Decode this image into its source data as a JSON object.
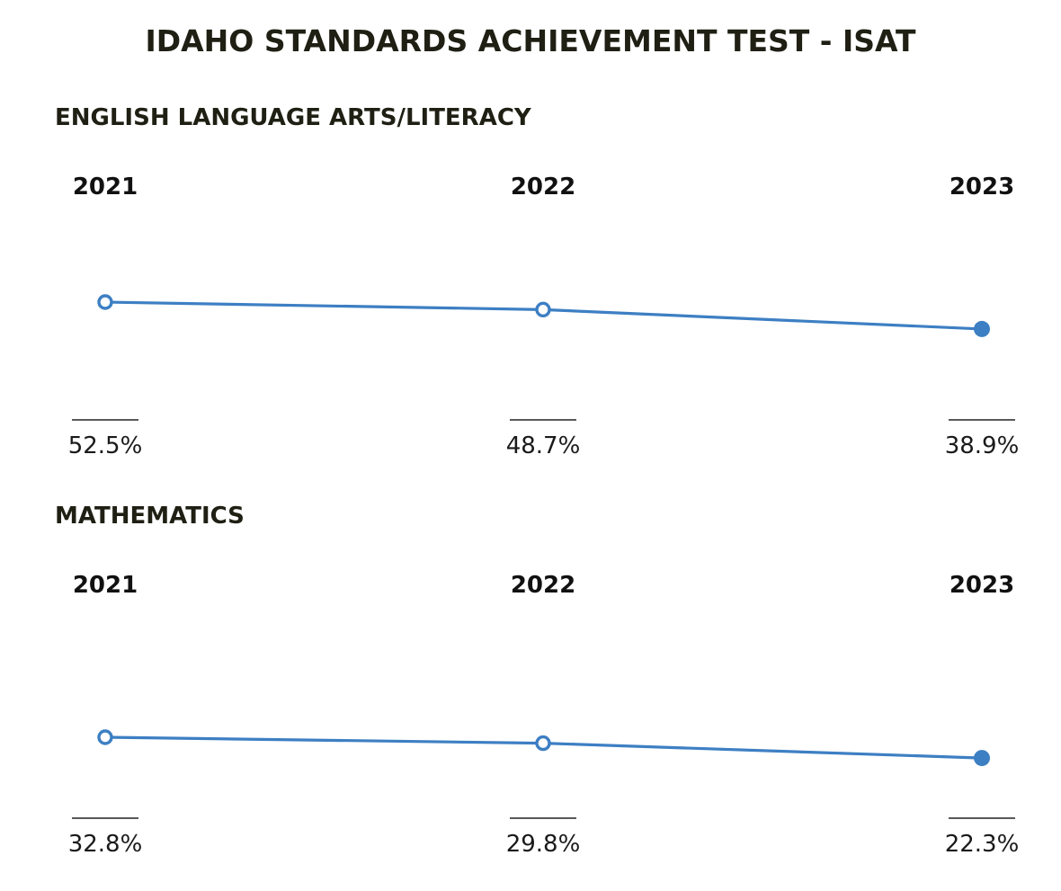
{
  "title": "IDAHO STANDARDS ACHIEVEMENT TEST - ISAT",
  "colors": {
    "line": "#3d7fc3",
    "point_fill_hollow": "#ffffff",
    "text": "#1f1f14",
    "rule": "#222222"
  },
  "chart_data": [
    {
      "type": "line",
      "title": "ENGLISH LANGUAGE ARTS/LITERACY",
      "categories": [
        "2021",
        "2022",
        "2023"
      ],
      "values": [
        52.5,
        48.7,
        38.9
      ],
      "value_labels": [
        "52.5%",
        "48.7%",
        "38.9%"
      ],
      "point_style": [
        "hollow",
        "hollow",
        "filled"
      ],
      "grid": false,
      "legend": "none"
    },
    {
      "type": "line",
      "title": "MATHEMATICS",
      "categories": [
        "2021",
        "2022",
        "2023"
      ],
      "values": [
        32.8,
        29.8,
        22.3
      ],
      "value_labels": [
        "32.8%",
        "29.8%",
        "22.3%"
      ],
      "point_style": [
        "hollow",
        "hollow",
        "filled"
      ],
      "grid": false,
      "legend": "none"
    }
  ]
}
